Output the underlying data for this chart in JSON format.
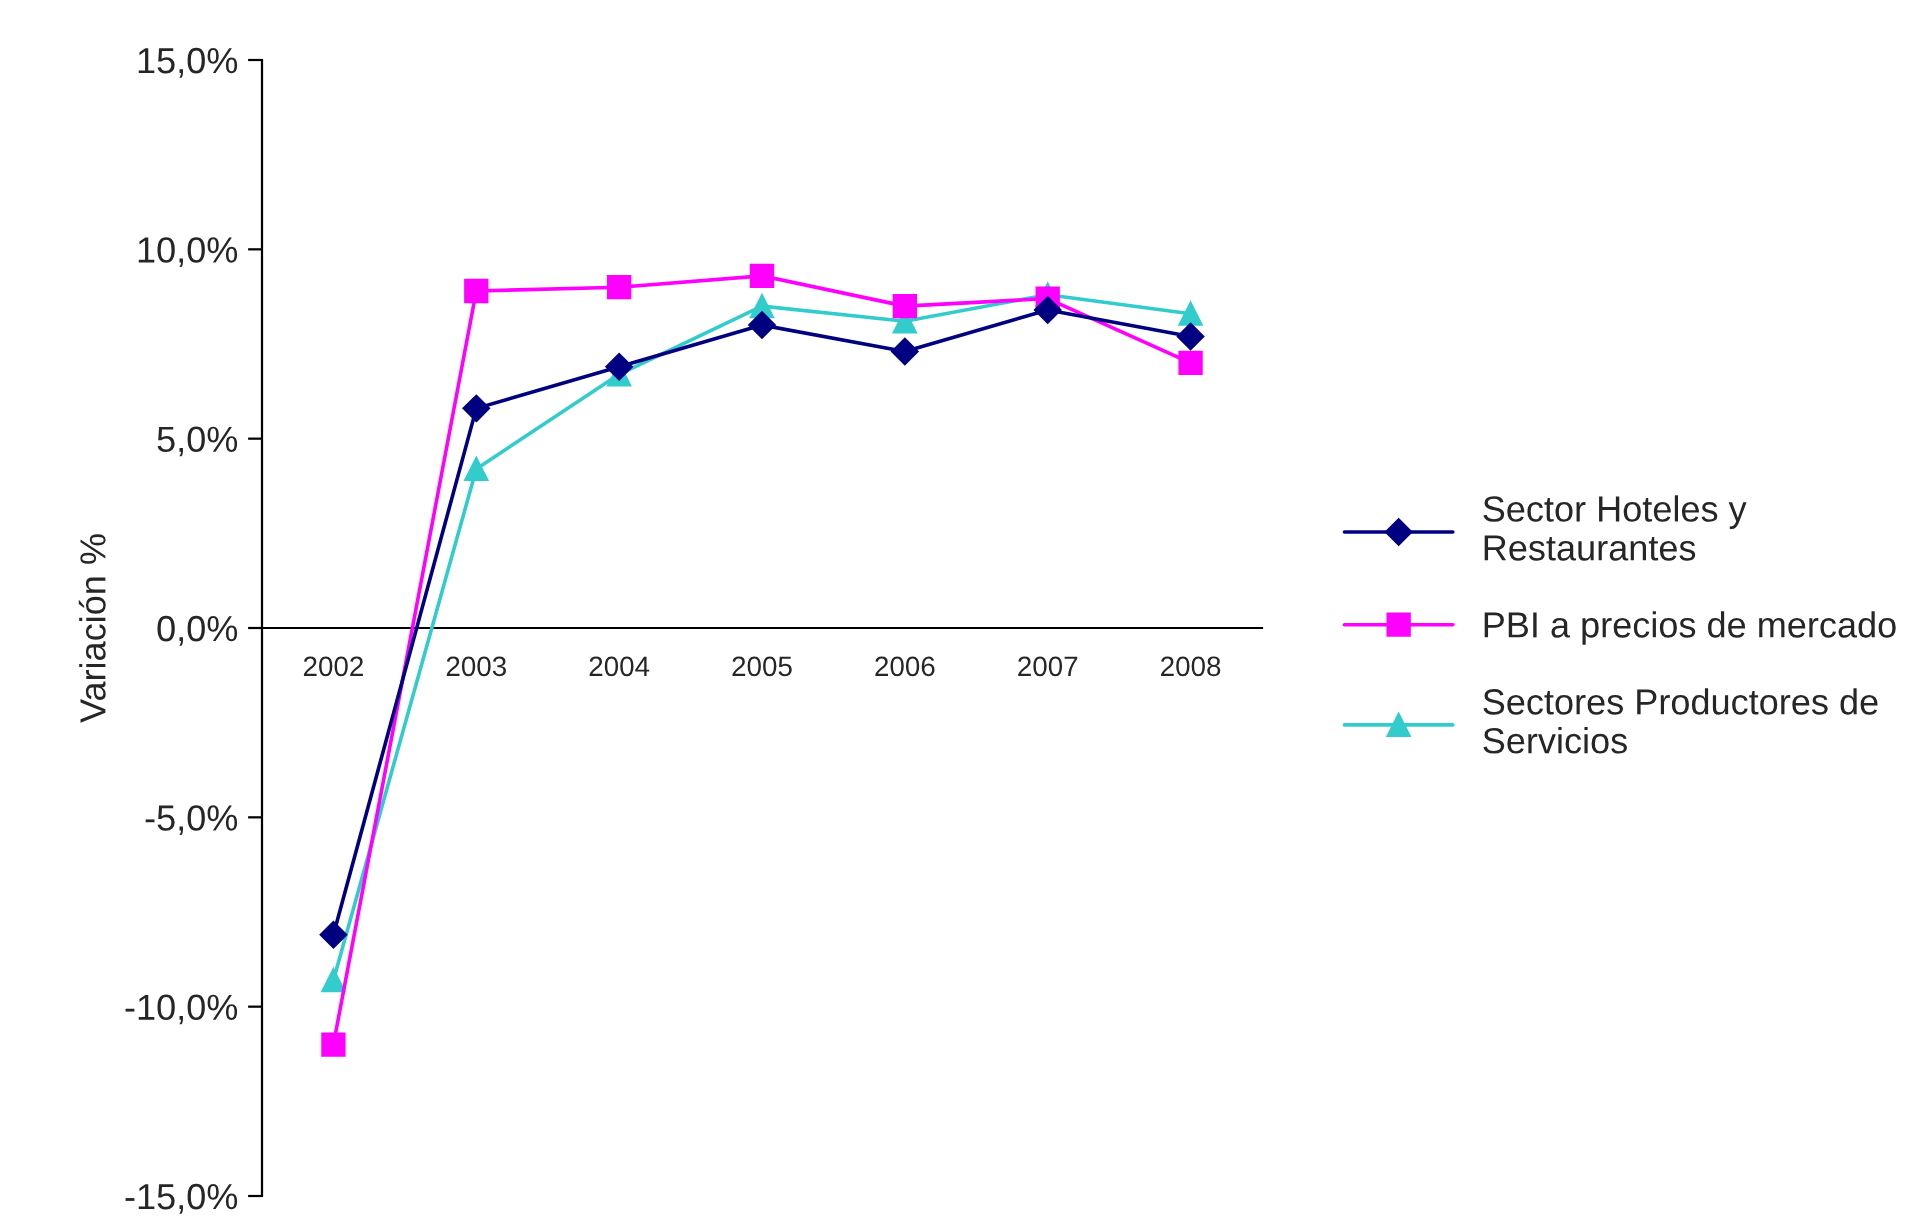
{
  "chart_data": {
    "type": "line",
    "ylabel": "Variación %",
    "categories": [
      "2002",
      "2003",
      "2004",
      "2005",
      "2006",
      "2007",
      "2008"
    ],
    "series": [
      {
        "name": "Sector Hoteles y Restaurantes",
        "color": "#000080",
        "marker": "diamond",
        "values": [
          -8.1,
          5.8,
          6.9,
          8.0,
          7.3,
          8.4,
          7.7
        ]
      },
      {
        "name": "PBI a precios de mercado",
        "color": "#ff00ff",
        "marker": "square",
        "values": [
          -11.0,
          8.9,
          9.0,
          9.3,
          8.5,
          8.7,
          7.0
        ]
      },
      {
        "name": "Sectores Productores de Servicios",
        "color": "#33cccc",
        "marker": "triangle",
        "values": [
          -9.3,
          4.2,
          6.7,
          8.5,
          8.1,
          8.8,
          8.3
        ]
      }
    ],
    "ylim": [
      -15,
      15
    ],
    "yticks": [
      {
        "value": -15,
        "label": "-15,0%"
      },
      {
        "value": -10,
        "label": "-10,0%"
      },
      {
        "value": -5,
        "label": "-5,0%"
      },
      {
        "value": 0,
        "label": "0,0%"
      },
      {
        "value": 5,
        "label": "5,0%"
      },
      {
        "value": 10,
        "label": "10,0%"
      },
      {
        "value": 15,
        "label": "15,0%"
      }
    ],
    "grid": false,
    "legend": "right",
    "line_style": "solid"
  }
}
